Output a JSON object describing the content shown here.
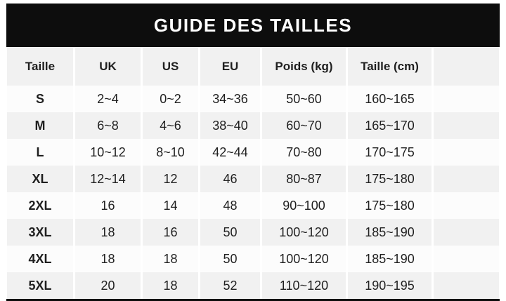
{
  "title": "GUIDE DES TAILLES",
  "chart_data": {
    "type": "table",
    "title": "GUIDE DES TAILLES",
    "columns": [
      "Taille",
      "UK",
      "US",
      "EU",
      "Poids (kg)",
      "Taille (cm)",
      ""
    ],
    "rows": [
      [
        "S",
        "2~4",
        "0~2",
        "34~36",
        "50~60",
        "160~165",
        ""
      ],
      [
        "M",
        "6~8",
        "4~6",
        "38~40",
        "60~70",
        "165~170",
        ""
      ],
      [
        "L",
        "10~12",
        "8~10",
        "42~44",
        "70~80",
        "170~175",
        ""
      ],
      [
        "XL",
        "12~14",
        "12",
        "46",
        "80~87",
        "175~180",
        ""
      ],
      [
        "2XL",
        "16",
        "14",
        "48",
        "90~100",
        "175~180",
        ""
      ],
      [
        "3XL",
        "18",
        "16",
        "50",
        "100~120",
        "185~190",
        ""
      ],
      [
        "4XL",
        "18",
        "18",
        "50",
        "100~120",
        "185~190",
        ""
      ],
      [
        "5XL",
        "20",
        "18",
        "52",
        "110~120",
        "190~195",
        ""
      ]
    ],
    "layout": {
      "striped": true,
      "header_background": "#f1f1f1",
      "stripe_background": "#f1f1f1",
      "base_background": "#fcfcfc",
      "grid": "white vertical dividers"
    }
  },
  "colors": {
    "title_bar": "#0d0d0d",
    "title_text": "#ffffff",
    "cell_text": "#1f1f1f",
    "row_gray": "#f1f1f1",
    "row_white": "#fcfcfc",
    "divider": "#ffffff"
  }
}
